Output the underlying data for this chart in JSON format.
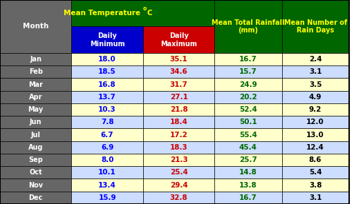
{
  "months": [
    "Jan",
    "Feb",
    "Mar",
    "Apr",
    "May",
    "Jun",
    "Jul",
    "Aug",
    "Sep",
    "Oct",
    "Nov",
    "Dec"
  ],
  "daily_min": [
    18.0,
    18.5,
    16.8,
    13.7,
    10.3,
    7.8,
    6.7,
    6.9,
    8.0,
    10.1,
    13.4,
    15.9
  ],
  "daily_max": [
    35.1,
    34.6,
    31.7,
    27.1,
    21.8,
    18.4,
    17.2,
    18.3,
    21.3,
    25.4,
    29.4,
    32.8
  ],
  "rainfall": [
    16.7,
    15.7,
    24.9,
    20.2,
    52.4,
    50.1,
    55.4,
    45.4,
    25.7,
    14.8,
    13.8,
    16.7
  ],
  "rain_days": [
    2.4,
    3.1,
    3.5,
    4.9,
    9.2,
    12.0,
    13.0,
    12.4,
    8.6,
    5.4,
    3.8,
    3.1
  ],
  "header_bg": "#006600",
  "header_text": "#FFFF00",
  "min_col_bg": "#0000CC",
  "max_col_bg": "#CC0000",
  "subheader_text": "#FFFFFF",
  "month_col_bg": "#666666",
  "month_text": "#FFFFFF",
  "row_bg_odd": "#FFFFCC",
  "row_bg_even": "#CCDDFF",
  "min_text_color": "#0000FF",
  "max_text_color": "#CC0000",
  "rainfall_text_color": "#006600",
  "rain_days_text_color": "#000000",
  "border_color": "#000000",
  "temp_header": "Mean Temperature °C",
  "rainfall_header": "Mean Total Rainfall\n(mm)",
  "rain_days_header": "Mean Number of\nRain Days",
  "month_header": "Month",
  "sub_min": "Daily\nMinimum",
  "sub_max": "Daily\nMaximum"
}
